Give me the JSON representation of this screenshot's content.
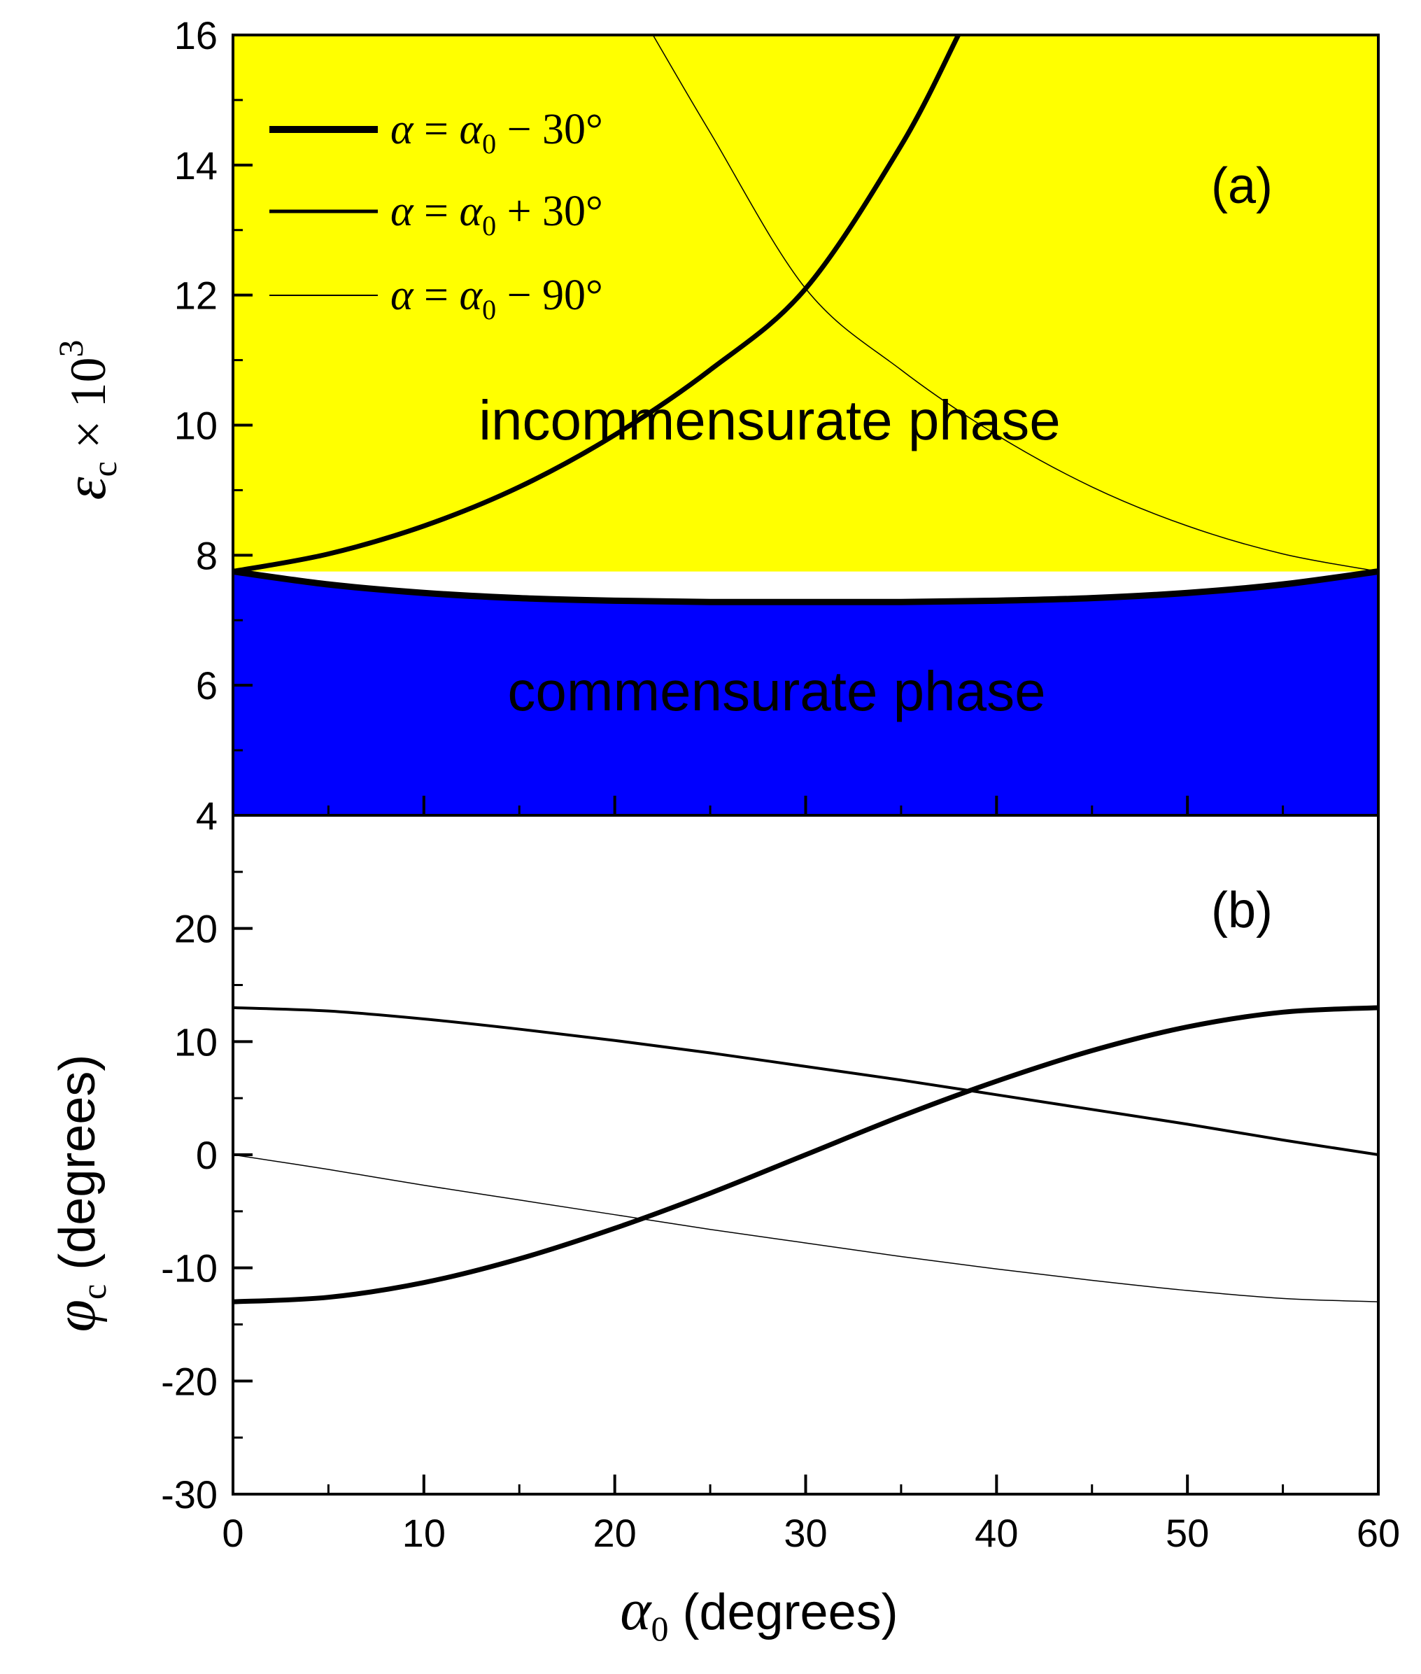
{
  "colors": {
    "incommensurate_fill": "#ffff00",
    "commensurate_fill": "#0000ff",
    "line": "#000000",
    "background": "#ffffff"
  },
  "chart_data": [
    {
      "panel": "(a)",
      "type": "area",
      "xlim": [
        0,
        60
      ],
      "ylim": [
        4,
        16
      ],
      "yticks": [
        "4",
        "6",
        "8",
        "10",
        "12",
        "14",
        "16"
      ],
      "ylabel": {
        "symbol": "ε",
        "sub": "c",
        "rest": " × 10",
        "sup": "3"
      },
      "regions": [
        {
          "name": "incommensurate phase",
          "fill": "#ffff00"
        },
        {
          "name": "commensurate phase",
          "fill": "#0000ff"
        }
      ],
      "boundary": {
        "x": [
          0,
          5,
          10,
          15,
          20,
          25,
          30,
          35,
          40,
          45,
          50,
          55,
          60
        ],
        "y": [
          7.75,
          7.55,
          7.42,
          7.34,
          7.3,
          7.28,
          7.28,
          7.28,
          7.3,
          7.34,
          7.42,
          7.55,
          7.75
        ]
      },
      "series": [
        {
          "name": "α = α0 − 30°",
          "legend": {
            "lhs": "α",
            "eq": " = ",
            "base": "α",
            "sub": "0",
            "op": " − 30°"
          },
          "width": 7,
          "x": [
            0,
            5,
            10,
            15,
            20,
            25,
            30,
            35,
            38
          ],
          "y": [
            7.75,
            8.02,
            8.45,
            9.05,
            9.85,
            10.85,
            12.1,
            14.3,
            16.0
          ]
        },
        {
          "name": "α = α0 + 30°",
          "legend": {
            "lhs": "α",
            "eq": " = ",
            "base": "α",
            "sub": "0",
            "op": " + 30°"
          },
          "width": 4,
          "x": [],
          "y": []
        },
        {
          "name": "α = α0 − 90°",
          "legend": {
            "lhs": "α",
            "eq": " = ",
            "base": "α",
            "sub": "0",
            "op": " − 90°"
          },
          "width": 1.5,
          "x": [
            22,
            25,
            30,
            35,
            40,
            45,
            50,
            55,
            60
          ],
          "y": [
            16.0,
            14.5,
            12.1,
            10.85,
            9.85,
            9.05,
            8.45,
            8.02,
            7.75
          ]
        }
      ]
    },
    {
      "panel": "(b)",
      "type": "line",
      "xlim": [
        0,
        60
      ],
      "ylim": [
        -30,
        30
      ],
      "xticks": [
        "0",
        "10",
        "20",
        "30",
        "40",
        "50",
        "60"
      ],
      "yticks": [
        "-30",
        "-20",
        "-10",
        "0",
        "10",
        "20"
      ],
      "xlabel": {
        "base": "α",
        "sub": "0",
        "rest": " (degrees)"
      },
      "ylabel": {
        "base": "φ",
        "sub": "c",
        "rest": " (degrees)"
      },
      "series": [
        {
          "name": "α = α0 − 30°",
          "width": 7,
          "x": [
            0,
            5,
            10,
            15,
            20,
            25,
            30,
            35,
            40,
            45,
            50,
            55,
            60
          ],
          "y": [
            -13.0,
            -12.6,
            -11.3,
            -9.2,
            -6.5,
            -3.4,
            0.0,
            3.4,
            6.5,
            9.2,
            11.3,
            12.6,
            13.0
          ]
        },
        {
          "name": "α = α0 + 30°",
          "width": 4,
          "x": [
            0,
            5,
            10,
            15,
            20,
            25,
            30,
            35,
            40,
            45,
            50,
            55,
            60
          ],
          "y": [
            13.0,
            12.7,
            12.0,
            11.1,
            10.1,
            9.0,
            7.8,
            6.6,
            5.3,
            4.0,
            2.7,
            1.3,
            0.0
          ]
        },
        {
          "name": "α = α0 − 90°",
          "width": 1.5,
          "x": [
            0,
            5,
            10,
            15,
            20,
            25,
            30,
            35,
            40,
            45,
            50,
            55,
            60
          ],
          "y": [
            0.0,
            -1.3,
            -2.7,
            -4.0,
            -5.3,
            -6.6,
            -7.8,
            -9.0,
            -10.1,
            -11.1,
            -12.0,
            -12.7,
            -13.0
          ]
        }
      ]
    }
  ]
}
